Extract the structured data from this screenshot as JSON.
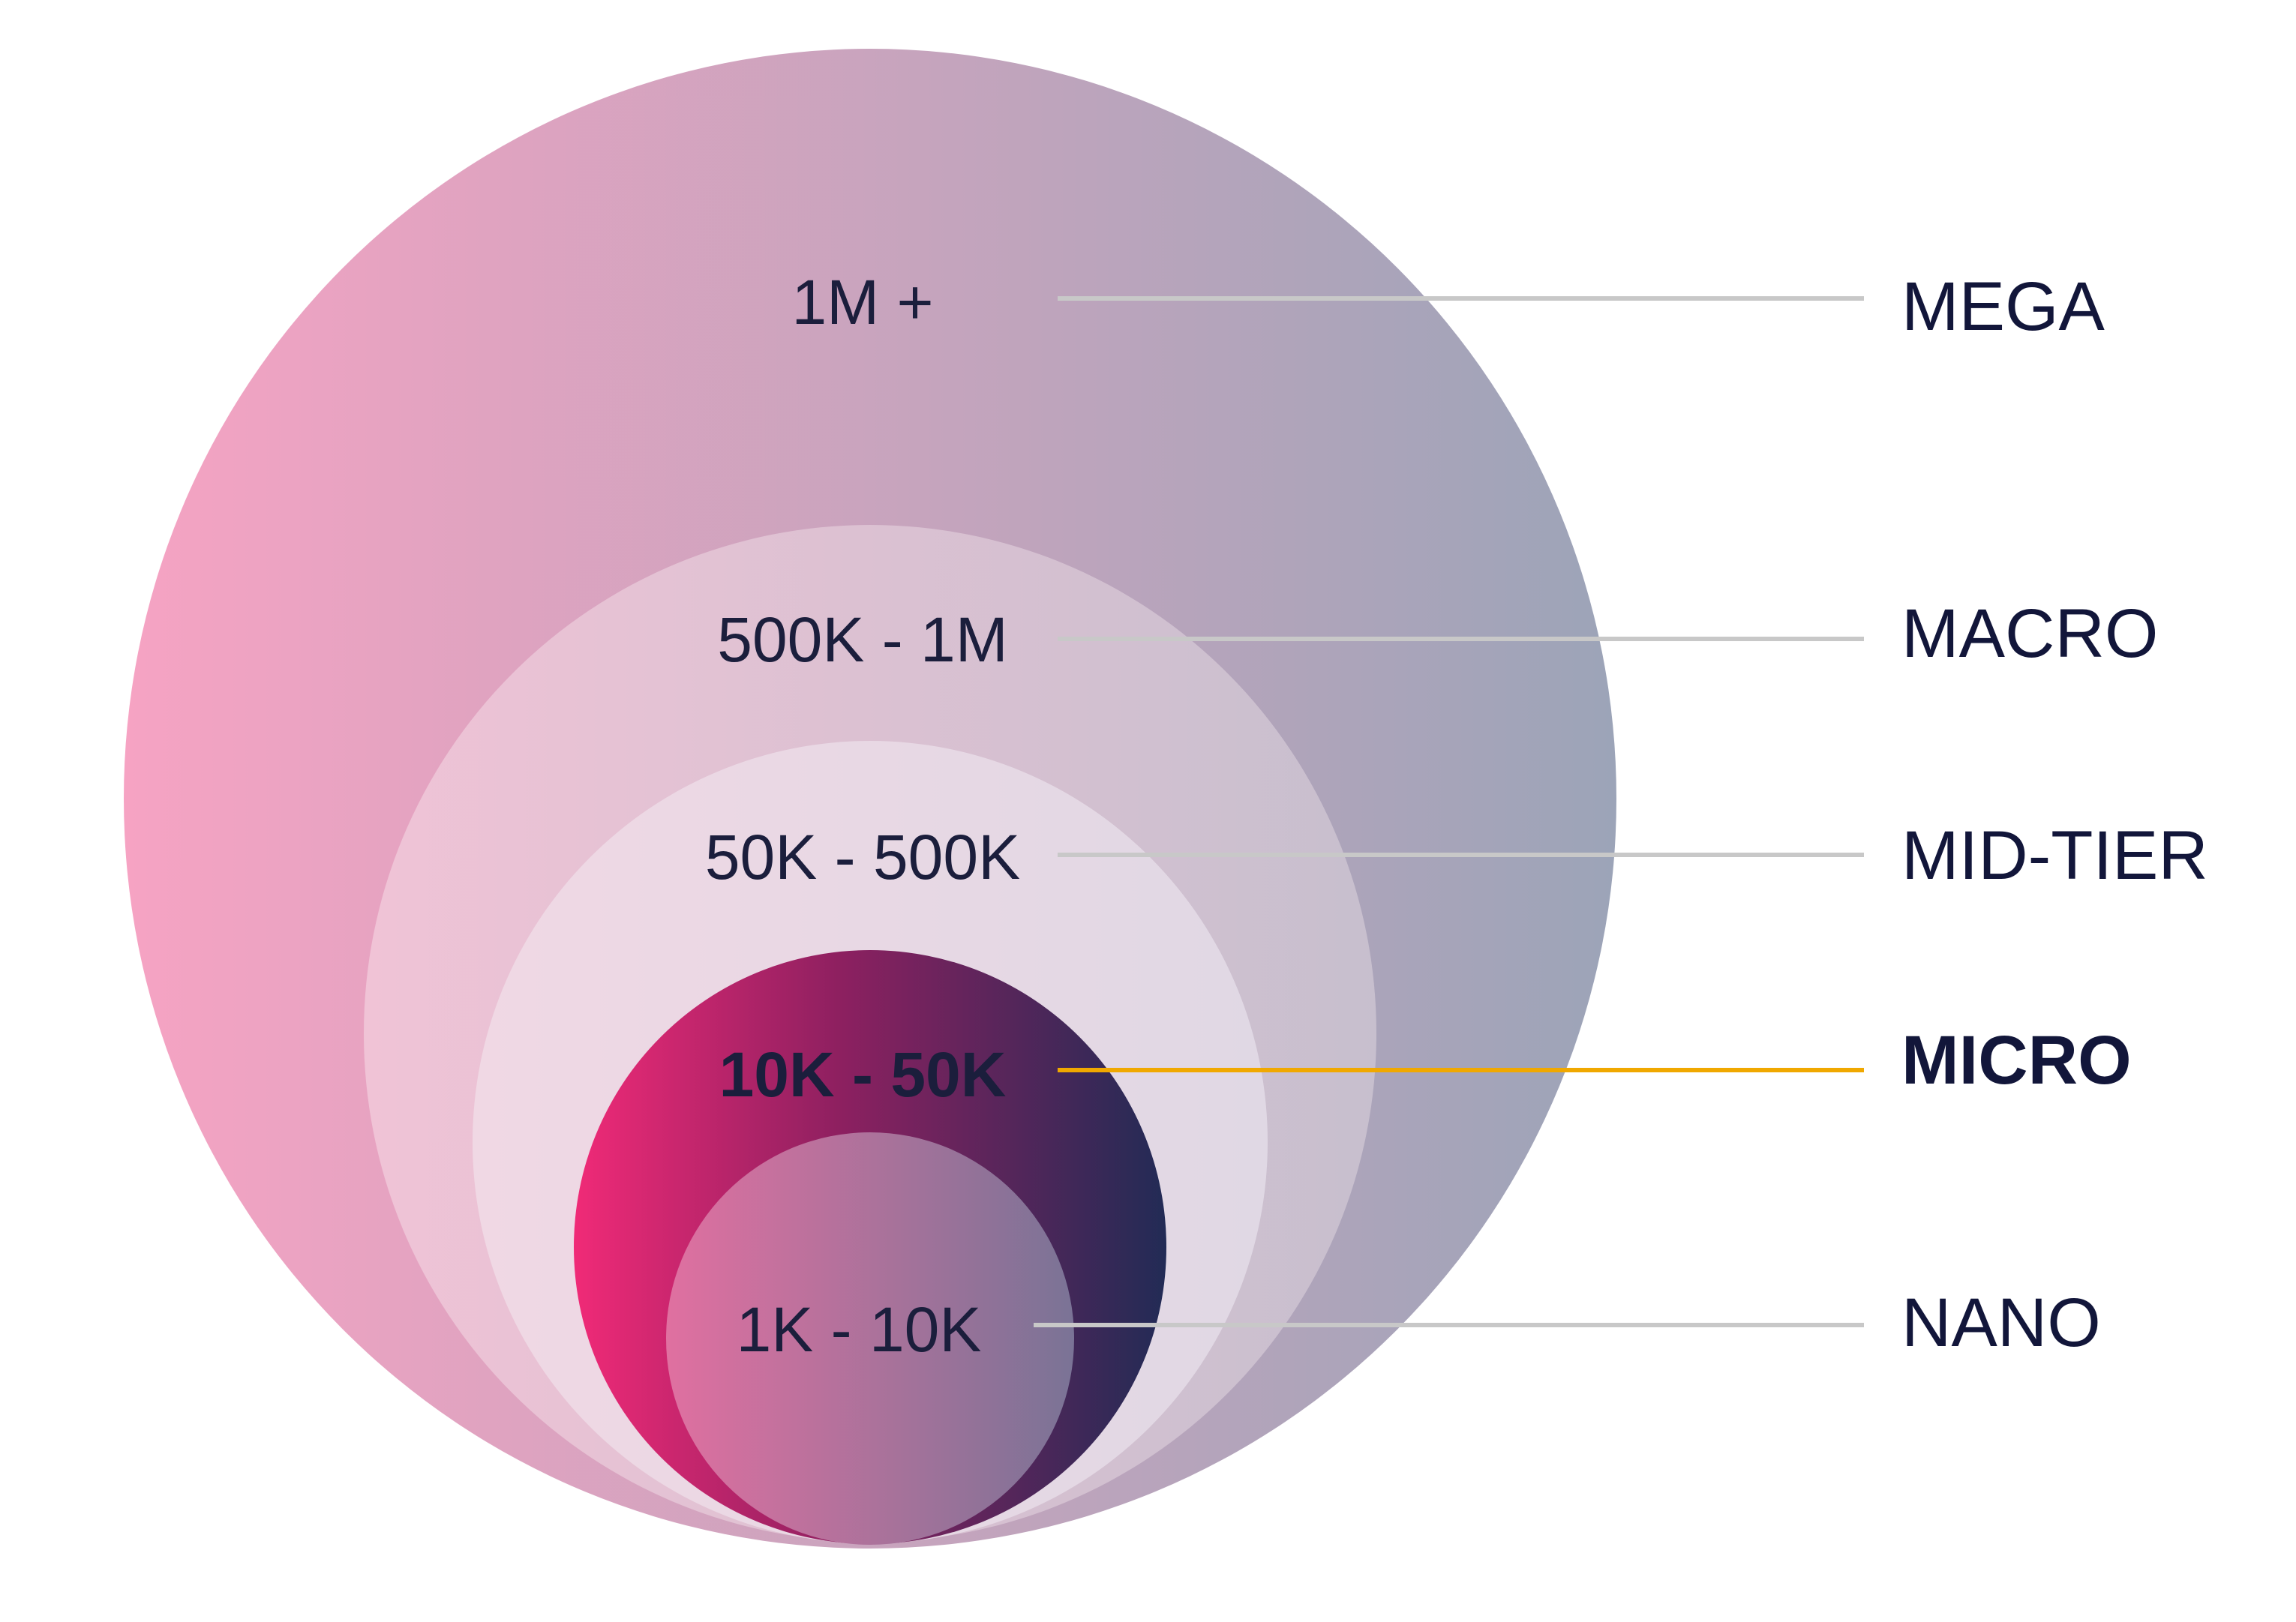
{
  "diagram": {
    "tiers": [
      {
        "range": "1M +",
        "name": "MEGA",
        "highlight": false
      },
      {
        "range": "500K - 1M",
        "name": "MACRO",
        "highlight": false
      },
      {
        "range": "50K - 500K",
        "name": "MID-TIER",
        "highlight": false
      },
      {
        "range": "10K - 50K",
        "name": "MICRO",
        "highlight": true
      },
      {
        "range": "1K - 10K",
        "name": "NANO",
        "highlight": false
      }
    ],
    "colors": {
      "mega_start": "#f6a3c3",
      "mega_end": "#9ca4b8",
      "micro_start": "#f02a77",
      "micro_mid": "#8d2060",
      "micro_end": "#222b55",
      "highlight_text": "#f5c400",
      "highlight_line": "#f0a800",
      "leader_line": "#c8c8c8",
      "label_text": "#12163a"
    }
  }
}
